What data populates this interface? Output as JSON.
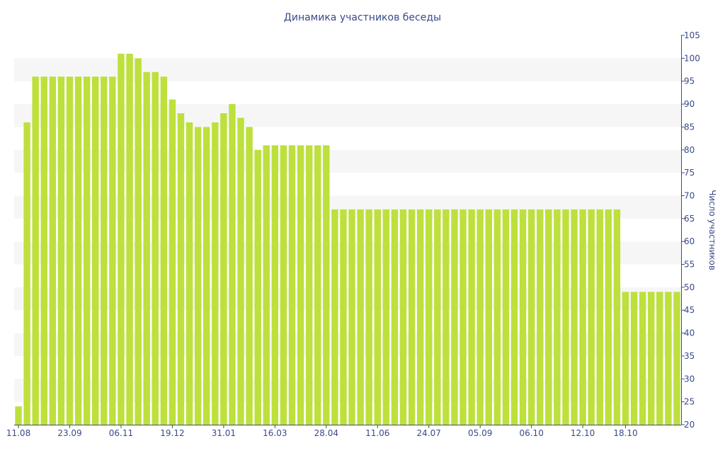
{
  "chart_data": {
    "type": "bar",
    "title": "Динамика участников беседы",
    "xlabel": "",
    "ylabel": "Число участников",
    "y_axis_side": "right",
    "ylim": [
      20,
      105
    ],
    "y_ticks": [
      20,
      25,
      30,
      35,
      40,
      45,
      50,
      55,
      60,
      65,
      70,
      75,
      80,
      85,
      90,
      95,
      100,
      105
    ],
    "x_tick_labels": [
      "11.08",
      "23.09",
      "06.11",
      "19.12",
      "31.01",
      "16.03",
      "28.04",
      "11.06",
      "24.07",
      "05.09",
      "06.10",
      "12.10",
      "18.10"
    ],
    "x_tick_bar_index": [
      0,
      6,
      12,
      18,
      24,
      30,
      36,
      42,
      48,
      54,
      60,
      66,
      71
    ],
    "values": [
      24,
      86,
      96,
      96,
      96,
      96,
      96,
      96,
      96,
      96,
      96,
      96,
      101,
      101,
      100,
      97,
      97,
      96,
      91,
      88,
      86,
      85,
      85,
      86,
      88,
      90,
      87,
      85,
      80,
      81,
      81,
      81,
      81,
      81,
      81,
      81,
      81,
      67,
      67,
      67,
      67,
      67,
      67,
      67,
      67,
      67,
      67,
      67,
      67,
      67,
      67,
      67,
      67,
      67,
      67,
      67,
      67,
      67,
      67,
      67,
      67,
      67,
      67,
      67,
      67,
      67,
      67,
      67,
      67,
      67,
      67,
      49,
      49,
      49,
      49,
      49,
      49,
      49
    ],
    "bar_color": "#bde03c",
    "band_color": "#f6f6f6",
    "text_color": "#3a4a8a",
    "grid": "alternating horizontal bands"
  }
}
